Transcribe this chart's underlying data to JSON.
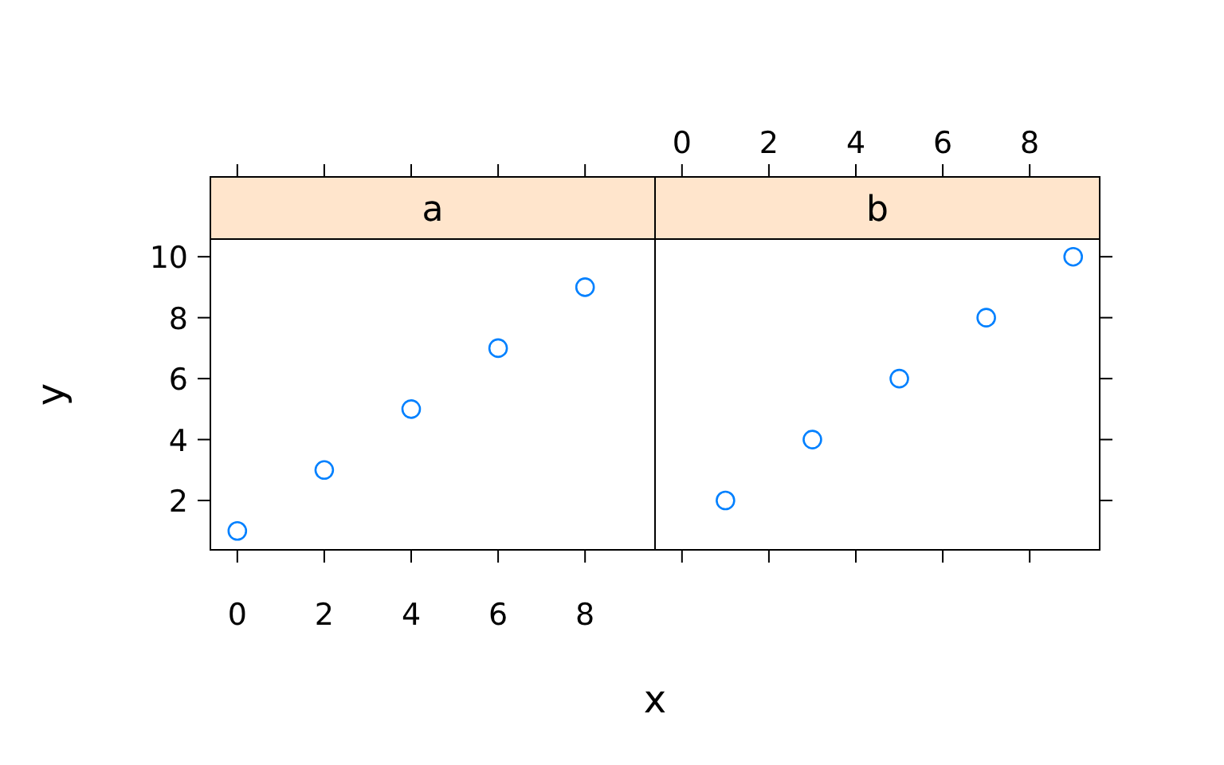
{
  "chart_data": [
    {
      "type": "scatter",
      "title": "a",
      "xlabel": "x",
      "ylabel": "y",
      "x": [
        0,
        2,
        4,
        6,
        8
      ],
      "series": [
        {
          "color": "#0080ff",
          "values": [
            1,
            3,
            5,
            7,
            9
          ]
        }
      ],
      "marker": "circle",
      "xlim": [
        -0.62,
        9.61
      ],
      "ylim": [
        0.38,
        10.58
      ],
      "xticks": [
        0,
        2,
        4,
        6,
        8
      ],
      "yticks": [
        2,
        4,
        6,
        8,
        10
      ]
    },
    {
      "type": "scatter",
      "title": "b",
      "x": [
        1,
        3,
        5,
        7,
        9
      ],
      "series": [
        {
          "color": "#0080ff",
          "values": [
            2,
            4,
            6,
            8,
            10
          ]
        }
      ],
      "marker": "circle",
      "xlim": [
        -0.62,
        9.61
      ],
      "ylim": [
        0.38,
        10.58
      ],
      "xticks": [
        0,
        2,
        4,
        6,
        8
      ],
      "yticks": [
        2,
        4,
        6,
        8,
        10
      ],
      "tick_labels": "x"
    }
  ]
}
